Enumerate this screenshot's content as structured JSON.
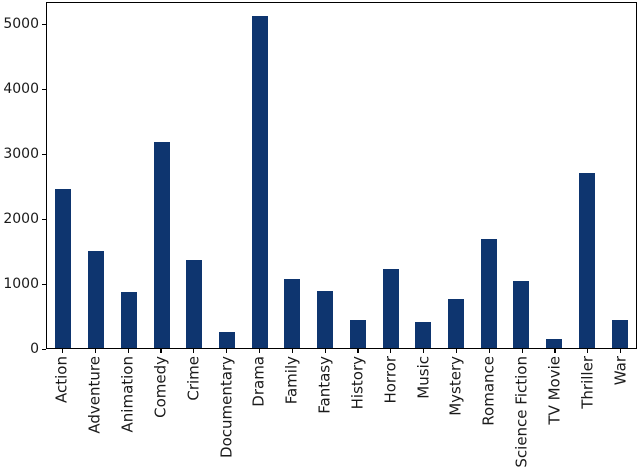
{
  "chart_data": {
    "type": "bar",
    "title": "",
    "xlabel": "",
    "ylabel": "",
    "categories": [
      "Action",
      "Adventure",
      "Animation",
      "Comedy",
      "Crime",
      "Documentary",
      "Drama",
      "Family",
      "Fantasy",
      "History",
      "Horror",
      "Music",
      "Mystery",
      "Romance",
      "Science Fiction",
      "TV Movie",
      "Thriller",
      "War"
    ],
    "values": [
      2465,
      1500,
      870,
      3200,
      1365,
      245,
      5145,
      1065,
      890,
      435,
      1220,
      400,
      765,
      1695,
      1040,
      140,
      2720,
      435
    ],
    "yticks": [
      0,
      1000,
      2000,
      3000,
      4000,
      5000
    ],
    "ylim": [
      0,
      5350
    ],
    "grid": false,
    "legend_position": "none",
    "x_tick_rotation_degrees": 90,
    "bar_color": "#0e356f",
    "spine_color": "#000000",
    "background_color": "#ffffff",
    "tick_label_color": "#1a1a1a"
  }
}
